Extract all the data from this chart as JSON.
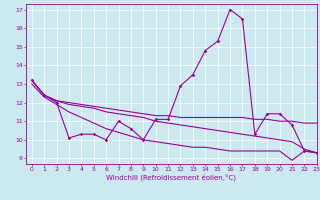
{
  "xlabel": "Windchill (Refroidissement éolien,°C)",
  "xlim": [
    -0.5,
    23
  ],
  "ylim": [
    8.7,
    17.3
  ],
  "yticks": [
    9,
    10,
    11,
    12,
    13,
    14,
    15,
    16,
    17
  ],
  "xticks": [
    0,
    1,
    2,
    3,
    4,
    5,
    6,
    7,
    8,
    9,
    10,
    11,
    12,
    13,
    14,
    15,
    16,
    17,
    18,
    19,
    20,
    21,
    22,
    23
  ],
  "bg_color": "#cce9f0",
  "line_color": "#990099",
  "grid_color": "#ffffff",
  "series1_x": [
    0,
    1,
    2,
    3,
    4,
    5,
    6,
    7,
    8,
    9,
    10,
    11,
    12,
    13,
    14,
    15,
    16,
    17,
    18,
    19,
    20,
    21,
    22,
    23
  ],
  "series1_y": [
    13.2,
    12.4,
    12.0,
    10.1,
    10.3,
    10.3,
    10.0,
    11.0,
    10.6,
    10.0,
    11.1,
    11.1,
    12.9,
    13.5,
    14.8,
    15.3,
    17.0,
    16.5,
    10.3,
    11.4,
    11.4,
    10.8,
    9.4,
    9.3
  ],
  "series2_x": [
    0,
    1,
    2,
    3,
    4,
    5,
    6,
    7,
    8,
    9,
    10,
    11,
    12,
    13,
    14,
    15,
    16,
    17,
    18,
    19,
    20,
    21,
    22,
    23
  ],
  "series2_y": [
    13.2,
    12.4,
    12.1,
    12.0,
    11.9,
    11.8,
    11.7,
    11.6,
    11.5,
    11.4,
    11.3,
    11.3,
    11.2,
    11.2,
    11.2,
    11.2,
    11.2,
    11.2,
    11.1,
    11.1,
    11.0,
    11.0,
    10.9,
    10.9
  ],
  "series3_x": [
    0,
    1,
    2,
    3,
    4,
    5,
    6,
    7,
    8,
    9,
    10,
    11,
    12,
    13,
    14,
    15,
    16,
    17,
    18,
    19,
    20,
    21,
    22,
    23
  ],
  "series3_y": [
    13.2,
    12.4,
    12.1,
    11.9,
    11.8,
    11.7,
    11.5,
    11.4,
    11.3,
    11.2,
    11.0,
    10.9,
    10.8,
    10.7,
    10.6,
    10.5,
    10.4,
    10.3,
    10.2,
    10.1,
    10.0,
    9.9,
    9.5,
    9.3
  ],
  "series4_x": [
    0,
    1,
    2,
    3,
    4,
    5,
    6,
    7,
    8,
    9,
    10,
    11,
    12,
    13,
    14,
    15,
    16,
    17,
    18,
    19,
    20,
    21,
    22,
    23
  ],
  "series4_y": [
    13.0,
    12.3,
    11.9,
    11.5,
    11.2,
    10.9,
    10.6,
    10.4,
    10.2,
    10.0,
    9.9,
    9.8,
    9.7,
    9.6,
    9.6,
    9.5,
    9.4,
    9.4,
    9.4,
    9.4,
    9.4,
    8.9,
    9.4,
    9.3
  ],
  "tick_fontsize": 4.5,
  "xlabel_fontsize": 5.0,
  "marker_size": 1.8,
  "line_width": 0.8
}
